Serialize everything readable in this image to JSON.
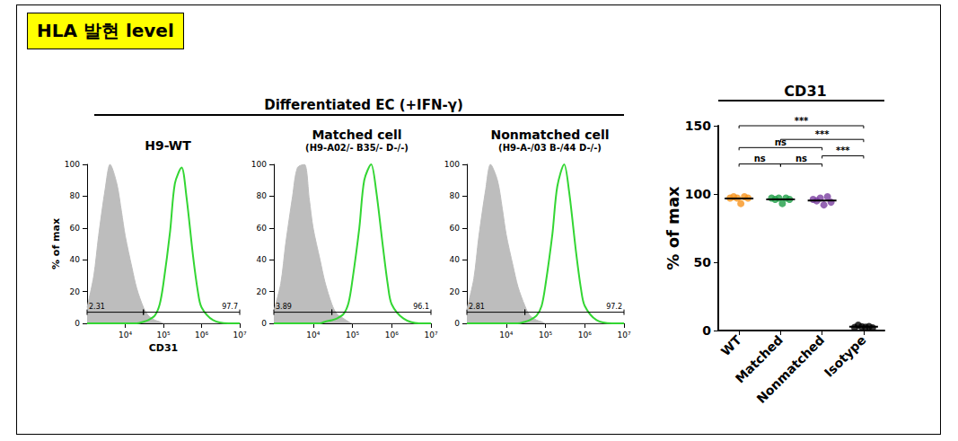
{
  "panel_label": "HLA 발현 level",
  "group_title": "Differentiated EC (+IFN-γ)",
  "chart_data": [
    {
      "type": "line",
      "title": "H9-WT",
      "xlabel": "CD31",
      "ylabel": "% of max",
      "log": "x",
      "grid": false,
      "x": [
        1000,
        1500,
        2000,
        3000,
        4000,
        6000,
        8000,
        10000,
        15000,
        20000,
        30000,
        40000,
        60000,
        80000,
        100000,
        150000,
        200000,
        300000,
        400000,
        600000,
        800000,
        1000000,
        2000000,
        5000000,
        10000000
      ],
      "series": [
        {
          "type": "area",
          "color": "#bdbdbd",
          "values": [
            10,
            30,
            55,
            85,
            100,
            88,
            70,
            55,
            35,
            22,
            10,
            5,
            2,
            1,
            0,
            0,
            0,
            0,
            0,
            0,
            0,
            0,
            0,
            0,
            0
          ]
        },
        {
          "type": "line",
          "color": "#33d633",
          "values": [
            0,
            0,
            0,
            0,
            0,
            0,
            0,
            0,
            0,
            0,
            1,
            2,
            5,
            12,
            25,
            58,
            88,
            98,
            80,
            42,
            20,
            10,
            2,
            0,
            0
          ]
        }
      ],
      "gates": [
        {
          "range": [
            1000,
            30000
          ],
          "value": 2.31
        },
        {
          "range": [
            30000,
            10000000
          ],
          "value": 97.7
        }
      ],
      "xlim": [
        1000,
        10000000
      ],
      "xticks": [
        {
          "value": 10000,
          "label": "10⁴"
        },
        {
          "value": 100000,
          "label": "10⁵"
        },
        {
          "value": 1000000,
          "label": "10⁶"
        },
        {
          "value": 10000000,
          "label": "10⁷"
        }
      ],
      "ylim": [
        0,
        100
      ],
      "yticks": [
        0,
        20,
        40,
        60,
        80,
        100
      ]
    },
    {
      "type": "line",
      "title": "Matched cell",
      "subtitle": "(H9-A02/- B35/- D-/-)",
      "log": "x",
      "grid": false,
      "x": [
        1000,
        1500,
        2000,
        3000,
        4000,
        6000,
        8000,
        10000,
        15000,
        20000,
        30000,
        40000,
        60000,
        80000,
        100000,
        150000,
        200000,
        300000,
        400000,
        600000,
        800000,
        1000000,
        2000000,
        5000000,
        10000000
      ],
      "series": [
        {
          "type": "area",
          "color": "#bdbdbd",
          "values": [
            8,
            25,
            50,
            80,
            98,
            100,
            78,
            60,
            40,
            26,
            12,
            6,
            3,
            1,
            0,
            0,
            0,
            0,
            0,
            0,
            0,
            0,
            0,
            0,
            0
          ]
        },
        {
          "type": "line",
          "color": "#33d633",
          "values": [
            0,
            0,
            0,
            0,
            0,
            0,
            0,
            0,
            0,
            1,
            2,
            3,
            6,
            13,
            27,
            60,
            90,
            100,
            84,
            48,
            24,
            12,
            3,
            0,
            0
          ]
        }
      ],
      "gates": [
        {
          "range": [
            1000,
            30000
          ],
          "value": 3.89
        },
        {
          "range": [
            30000,
            10000000
          ],
          "value": 96.1
        }
      ],
      "xlim": [
        1000,
        10000000
      ],
      "xticks": [
        {
          "value": 10000,
          "label": "10⁴"
        },
        {
          "value": 100000,
          "label": "10⁵"
        },
        {
          "value": 1000000,
          "label": "10⁶"
        },
        {
          "value": 10000000,
          "label": "10⁷"
        }
      ],
      "ylim": [
        0,
        100
      ],
      "yticks": [
        0,
        20,
        40,
        60,
        80,
        100
      ]
    },
    {
      "type": "line",
      "title": "Nonmatched cell",
      "subtitle": "(H9-A-/03 B-/44 D-/-)",
      "log": "x",
      "grid": false,
      "x": [
        1000,
        1500,
        2000,
        3000,
        4000,
        6000,
        8000,
        10000,
        15000,
        20000,
        30000,
        40000,
        60000,
        80000,
        100000,
        150000,
        200000,
        300000,
        400000,
        600000,
        800000,
        1000000,
        2000000,
        5000000,
        10000000
      ],
      "series": [
        {
          "type": "area",
          "color": "#bdbdbd",
          "values": [
            9,
            28,
            54,
            84,
            100,
            90,
            72,
            56,
            36,
            23,
            11,
            5,
            2,
            1,
            0,
            0,
            0,
            0,
            0,
            0,
            0,
            0,
            0,
            0,
            0
          ]
        },
        {
          "type": "line",
          "color": "#33d633",
          "values": [
            0,
            0,
            0,
            0,
            0,
            0,
            0,
            0,
            0,
            0,
            1,
            2,
            5,
            11,
            24,
            56,
            86,
            100,
            83,
            45,
            22,
            11,
            2,
            0,
            0
          ]
        }
      ],
      "gates": [
        {
          "range": [
            1000,
            30000
          ],
          "value": 2.81
        },
        {
          "range": [
            30000,
            10000000
          ],
          "value": 97.2
        }
      ],
      "xlim": [
        1000,
        10000000
      ],
      "xticks": [
        {
          "value": 10000,
          "label": "10⁴"
        },
        {
          "value": 100000,
          "label": "10⁵"
        },
        {
          "value": 1000000,
          "label": "10⁶"
        },
        {
          "value": 10000000,
          "label": "10⁷"
        }
      ],
      "ylim": [
        0,
        100
      ],
      "yticks": [
        0,
        20,
        40,
        60,
        80,
        100
      ]
    },
    {
      "type": "scatter",
      "title": "CD31",
      "ylabel": "% of max",
      "grid": false,
      "categories": [
        "WT",
        "Matched",
        "Nonmatched",
        "Isotype"
      ],
      "colors": [
        "#f7931e",
        "#1e9e46",
        "#7b3fa0",
        "#000000"
      ],
      "points": [
        [
          97,
          98,
          97,
          93,
          98,
          97
        ],
        [
          97,
          96,
          97,
          93,
          97,
          96
        ],
        [
          96,
          95,
          97,
          92,
          98,
          94
        ],
        [
          2.3,
          3.9,
          2.8,
          2.5,
          3.0,
          2.0
        ]
      ],
      "means": [
        96.7,
        96.0,
        95.3,
        2.75
      ],
      "comparisons": [
        {
          "from": "WT",
          "to": "Matched",
          "y": 122,
          "label": "ns"
        },
        {
          "from": "Matched",
          "to": "Nonmatched",
          "y": 122,
          "label": "ns"
        },
        {
          "from": "WT",
          "to": "Nonmatched",
          "y": 134,
          "label": "ns"
        },
        {
          "from": "Nonmatched",
          "to": "Isotype",
          "y": 128,
          "label": "***"
        },
        {
          "from": "Matched",
          "to": "Isotype",
          "y": 140,
          "label": "***"
        },
        {
          "from": "WT",
          "to": "Isotype",
          "y": 150,
          "label": "***"
        }
      ],
      "ylim": [
        0,
        150
      ],
      "yticks": [
        0,
        50,
        100,
        150
      ]
    }
  ]
}
